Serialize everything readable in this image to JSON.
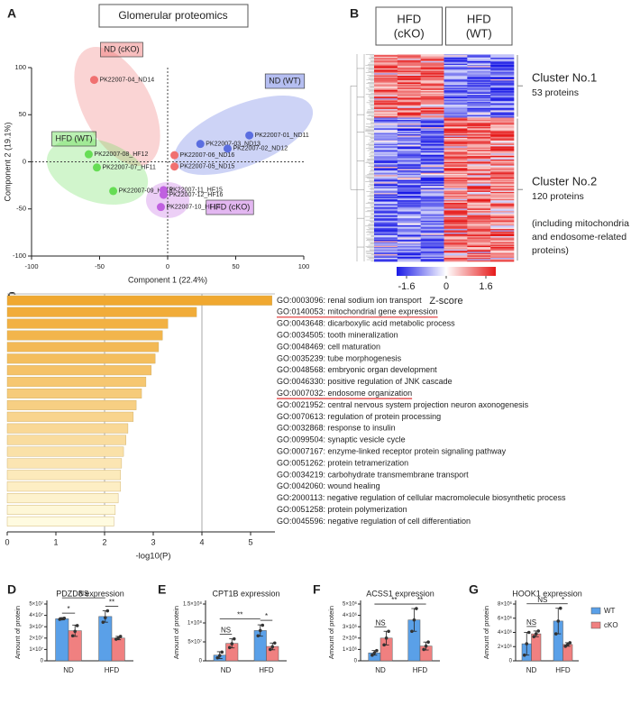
{
  "chart_data": [
    {
      "panel": "A",
      "type": "scatter",
      "title": "Glomerular proteomics",
      "xlabel": "Component 1 (22.4%)",
      "ylabel": "Component 2 (19.1%)",
      "xlim": [
        -100,
        100
      ],
      "ylim": [
        -100,
        100
      ],
      "xticks": [
        -100,
        -50,
        0,
        50,
        100
      ],
      "yticks": [
        -100,
        -50,
        0,
        50,
        100
      ],
      "series": [
        {
          "name": "ND (cKO)",
          "color": "#f07070",
          "x": [
            -54,
            5,
            5
          ],
          "y": [
            87,
            7,
            -5
          ],
          "labels": [
            "PK22007-04_ND14",
            "PK22007-06_ND16",
            "PK22007-05_ND15"
          ]
        },
        {
          "name": "ND (WT)",
          "color": "#5b6ee0",
          "x": [
            60,
            24,
            44
          ],
          "y": [
            28,
            19,
            14
          ],
          "labels": [
            "PK22007-01_ND11",
            "PK22007-03_ND13",
            "PK22007-02_ND12"
          ]
        },
        {
          "name": "HFD (WT)",
          "color": "#66dd55",
          "x": [
            -58,
            -52,
            -40
          ],
          "y": [
            8,
            -6,
            -31
          ],
          "labels": [
            "PK22007-08_HF12",
            "PK22007-07_HF11",
            "PK22007-09_HF13"
          ]
        },
        {
          "name": "HFD (cKO)",
          "color": "#c060e0",
          "x": [
            -3,
            -3,
            -5
          ],
          "y": [
            -30,
            -35,
            -48
          ],
          "labels": [
            "PK22007-11_HF15",
            "PK22007-12_HF16",
            "PK22007-10_HF14"
          ]
        }
      ]
    },
    {
      "panel": "B",
      "type": "heatmap",
      "column_groups": [
        [
          "HFD",
          "(cKO)"
        ],
        [
          "HFD",
          "(WT)"
        ]
      ],
      "clusters": [
        {
          "name": "Cluster No.1",
          "rows": 53,
          "detail": [
            "53 proteins"
          ]
        },
        {
          "name": "Cluster No.2",
          "rows": 120,
          "detail": [
            "120 proteins",
            "(including mitochondria",
            "and endosome-related",
            "proteins)"
          ]
        }
      ],
      "colorbar": {
        "label": "Z-score",
        "lim": [
          -2,
          2
        ],
        "ticks": [
          -1.6,
          0,
          1.6
        ],
        "colors": [
          "#1a1ae6",
          "#ffffff",
          "#e61a1a"
        ]
      }
    },
    {
      "panel": "C",
      "type": "hbar",
      "xlabel": "-log10(P)",
      "xlim": [
        0,
        5.5
      ],
      "xticks": [
        0,
        1,
        2,
        3,
        4,
        5
      ],
      "vlines": [
        2,
        4
      ],
      "color_range": [
        "#f0a830",
        "#fffbe0"
      ],
      "underlined": [
        1,
        8
      ],
      "underline_color": "#e03030",
      "categories": [
        "GO:0003096: renal sodium ion transport",
        "GO:0140053: mitochondrial gene expression",
        "GO:0043648: dicarboxylic acid metabolic process",
        "GO:0034505: tooth mineralization",
        "GO:0048469: cell maturation",
        "GO:0035239: tube morphogenesis",
        "GO:0048568: embryonic organ development",
        "GO:0046330: positive regulation of JNK cascade",
        "GO:0007032: endosome organization",
        "GO:0021952: central nervous system projection neuron axonogenesis",
        "GO:0070613: regulation of protein processing",
        "GO:0032868: response to insulin",
        "GO:0099504: synaptic vesicle cycle",
        "GO:0007167: enzyme-linked receptor protein signaling pathway",
        "GO:0051262: protein tetramerization",
        "GO:0034219: carbohydrate transmembrane transport",
        "GO:0042060: wound healing",
        "GO:2000113: negative regulation of cellular macromolecule biosynthetic process",
        "GO:0051258: protein polymerization",
        "GO:0045596: negative regulation of cell differentiation"
      ],
      "values": [
        5.44,
        3.89,
        3.3,
        3.19,
        3.11,
        3.04,
        2.96,
        2.85,
        2.76,
        2.65,
        2.59,
        2.48,
        2.44,
        2.39,
        2.35,
        2.33,
        2.33,
        2.28,
        2.22,
        2.19
      ]
    },
    {
      "panel": "D",
      "type": "grouped_bar",
      "title": "PDZD8 expression",
      "ylabel": "Amount of protein",
      "categories": [
        "ND",
        "HFD"
      ],
      "ylim": [
        0,
        50000000
      ],
      "yticks": [
        0,
        {
          "value": 10000000,
          "label": "1×10⁷"
        },
        {
          "value": 20000000,
          "label": "2×10⁷"
        },
        {
          "value": 30000000,
          "label": "3×10⁷"
        },
        {
          "value": 40000000,
          "label": "4×10⁷"
        },
        {
          "value": 50000000,
          "label": "5×10⁷"
        }
      ],
      "series": [
        {
          "name": "WT",
          "color": "#5aa0e8",
          "values": [
            37000000,
            39000000
          ],
          "errors": [
            1000000,
            5000000
          ],
          "points": [
            [
              36500000,
              37000000,
              37500000
            ],
            [
              34000000,
              38000000,
              44000000
            ]
          ]
        },
        {
          "name": "cKO",
          "color": "#f08080",
          "values": [
            26500000,
            20000000
          ],
          "errors": [
            5000000,
            1500000
          ],
          "points": [
            [
              22000000,
              26000000,
              31000000
            ],
            [
              19000000,
              20000000,
              21500000
            ]
          ]
        }
      ],
      "comparisons": [
        {
          "from": [
            0,
            0
          ],
          "to": [
            1,
            0
          ],
          "label": "*"
        },
        {
          "from": [
            0,
            1
          ],
          "to": [
            1,
            1
          ],
          "label": "**"
        },
        {
          "from": [
            0,
            0
          ],
          "to": [
            0,
            1
          ],
          "label": "NS"
        }
      ]
    },
    {
      "panel": "E",
      "type": "grouped_bar",
      "title": "CPT1B expression",
      "ylabel": "Amount of protein",
      "categories": [
        "ND",
        "HFD"
      ],
      "ylim": [
        0,
        150000000
      ],
      "yticks": [
        0,
        {
          "value": 50000000,
          "label": "5×10⁷"
        },
        {
          "value": 100000000,
          "label": "1×10⁸"
        },
        {
          "value": 150000000,
          "label": "1.5×10⁸"
        }
      ],
      "series": [
        {
          "name": "WT",
          "color": "#5aa0e8",
          "values": [
            15000000,
            80000000
          ],
          "errors": [
            9000000,
            15000000
          ],
          "points": [
            [
              8000000,
              14000000,
              23000000
            ],
            [
              66000000,
              80000000,
              94000000
            ]
          ]
        },
        {
          "name": "cKO",
          "color": "#f08080",
          "values": [
            46000000,
            38000000
          ],
          "errors": [
            12000000,
            9000000
          ],
          "points": [
            [
              35000000,
              45000000,
              58000000
            ],
            [
              30000000,
              37000000,
              47000000
            ]
          ]
        }
      ],
      "comparisons": [
        {
          "from": [
            0,
            0
          ],
          "to": [
            1,
            0
          ],
          "label": "NS"
        },
        {
          "from": [
            0,
            1
          ],
          "to": [
            1,
            1
          ],
          "label": "*"
        },
        {
          "from": [
            0,
            0
          ],
          "to": [
            0,
            1
          ],
          "label": "**"
        }
      ]
    },
    {
      "panel": "F",
      "type": "grouped_bar",
      "title": "ACSS1 expression",
      "ylabel": "Amount of protein",
      "categories": [
        "ND",
        "HFD"
      ],
      "ylim": [
        0,
        5000000
      ],
      "yticks": [
        0,
        {
          "value": 1000000,
          "label": "1×10⁶"
        },
        {
          "value": 2000000,
          "label": "2×10⁶"
        },
        {
          "value": 3000000,
          "label": "3×10⁶"
        },
        {
          "value": 4000000,
          "label": "4×10⁶"
        },
        {
          "value": 5000000,
          "label": "5×10⁶"
        }
      ],
      "series": [
        {
          "name": "WT",
          "color": "#5aa0e8",
          "values": [
            700000,
            3600000
          ],
          "errors": [
            200000,
            1000000
          ],
          "points": [
            [
              500000,
              700000,
              900000
            ],
            [
              2600000,
              3600000,
              4600000
            ]
          ]
        },
        {
          "name": "cKO",
          "color": "#f08080",
          "values": [
            2000000,
            1300000
          ],
          "errors": [
            600000,
            350000
          ],
          "points": [
            [
              1400000,
              2000000,
              2600000
            ],
            [
              1000000,
              1300000,
              1650000
            ]
          ]
        }
      ],
      "comparisons": [
        {
          "from": [
            0,
            0
          ],
          "to": [
            1,
            0
          ],
          "label": "NS"
        },
        {
          "from": [
            0,
            1
          ],
          "to": [
            1,
            1
          ],
          "label": "**"
        },
        {
          "from": [
            0,
            0
          ],
          "to": [
            0,
            1
          ],
          "label": "**"
        }
      ]
    },
    {
      "panel": "G",
      "type": "grouped_bar",
      "title": "HOOK1 expression",
      "ylabel": "Amount of protein",
      "categories": [
        "ND",
        "HFD"
      ],
      "ylim": [
        0,
        8000000
      ],
      "legend": "right",
      "yticks": [
        0,
        {
          "value": 2000000,
          "label": "2×10⁶"
        },
        {
          "value": 4000000,
          "label": "4×10⁶"
        },
        {
          "value": 6000000,
          "label": "6×10⁶"
        },
        {
          "value": 8000000,
          "label": "8×10⁶"
        }
      ],
      "series": [
        {
          "name": "WT",
          "color": "#5aa0e8",
          "values": [
            2400000,
            5600000
          ],
          "errors": [
            1600000,
            1800000
          ],
          "points": [
            [
              800000,
              2400000,
              4000000
            ],
            [
              3800000,
              5600000,
              7400000
            ]
          ]
        },
        {
          "name": "cKO",
          "color": "#f08080",
          "values": [
            3800000,
            2300000
          ],
          "errors": [
            400000,
            250000
          ],
          "points": [
            [
              3400000,
              3800000,
              4200000
            ],
            [
              2050000,
              2300000,
              2550000
            ]
          ]
        }
      ],
      "comparisons": [
        {
          "from": [
            0,
            0
          ],
          "to": [
            1,
            0
          ],
          "label": "NS"
        },
        {
          "from": [
            0,
            1
          ],
          "to": [
            1,
            1
          ],
          "label": "*"
        },
        {
          "from": [
            0,
            0
          ],
          "to": [
            0,
            1
          ],
          "label": "NS"
        }
      ]
    }
  ]
}
